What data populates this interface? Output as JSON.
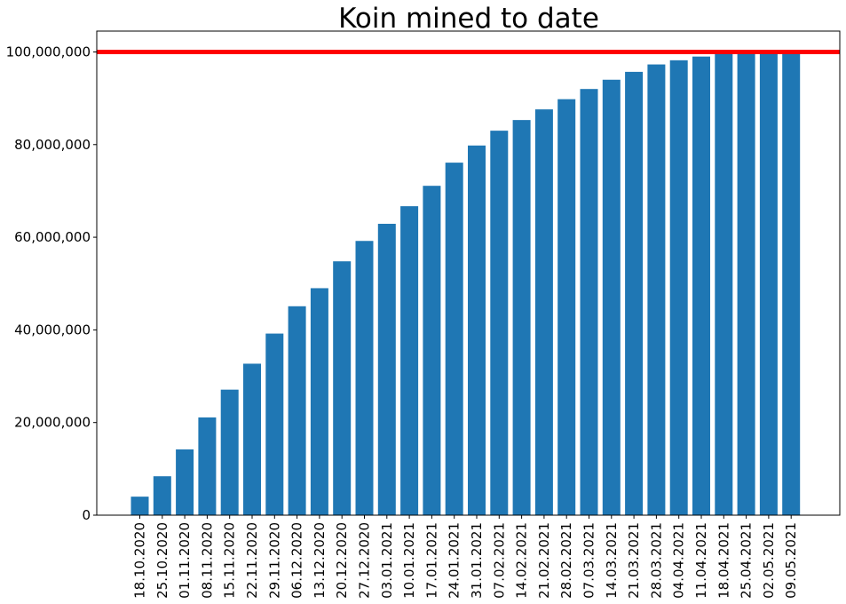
{
  "chart_data": {
    "type": "bar",
    "title": "Koin mined to date",
    "xlabel": "",
    "ylabel": "",
    "ylim": [
      0,
      104500000
    ],
    "yticks": [
      0,
      20000000,
      40000000,
      60000000,
      80000000,
      100000000
    ],
    "ytick_labels": [
      "0",
      "20,000,000",
      "40,000,000",
      "60,000,000",
      "80,000,000",
      "100,000,000"
    ],
    "categories": [
      "18.10.2020",
      "25.10.2020",
      "01.11.2020",
      "08.11.2020",
      "15.11.2020",
      "22.11.2020",
      "29.11.2020",
      "06.12.2020",
      "13.12.2020",
      "20.12.2020",
      "27.12.2020",
      "03.01.2021",
      "10.01.2021",
      "17.01.2021",
      "24.01.2021",
      "31.01.2021",
      "07.02.2021",
      "14.02.2021",
      "21.02.2021",
      "28.02.2021",
      "07.03.2021",
      "14.03.2021",
      "21.03.2021",
      "28.03.2021",
      "04.04.2021",
      "11.04.2021",
      "18.04.2021",
      "25.04.2021",
      "02.05.2021",
      "09.05.2021"
    ],
    "values": [
      4000000,
      8400000,
      14200000,
      21100000,
      27100000,
      32700000,
      39200000,
      45100000,
      49000000,
      54800000,
      59200000,
      62900000,
      66700000,
      71100000,
      76100000,
      79800000,
      83000000,
      85300000,
      87600000,
      89800000,
      92000000,
      94000000,
      95700000,
      97300000,
      98200000,
      99000000,
      100000000,
      100000000,
      100000000,
      100000000
    ],
    "reference_line": {
      "value": 100000000,
      "color": "#ff0000"
    },
    "bar_color": "#1f77b4",
    "grid": false,
    "legend": "none"
  }
}
